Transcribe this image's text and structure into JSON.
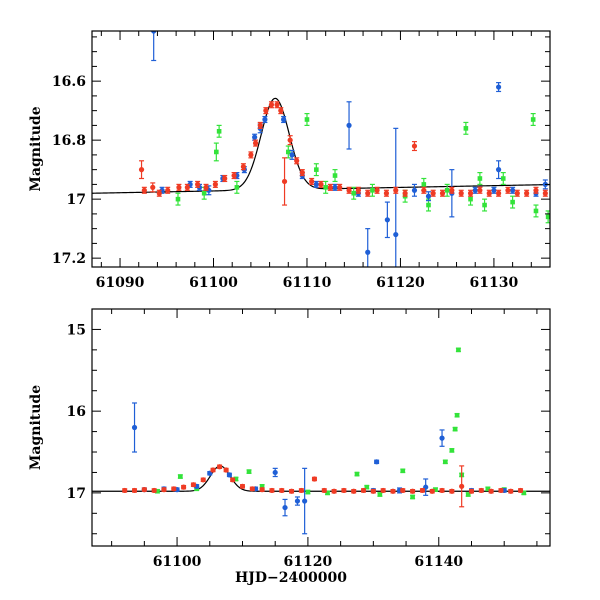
{
  "figure": {
    "x_title": "HJD−2400000",
    "colors": {
      "blue": "#1f5fd6",
      "red": "#ef3b24",
      "green": "#33e33a",
      "model": "#000000"
    }
  },
  "chart_data": [
    {
      "type": "scatter",
      "ylabel": "Magnitude",
      "xlim": [
        61087,
        61136
      ],
      "ylim": [
        17.23,
        16.43
      ],
      "xticks": [
        61090,
        61100,
        61110,
        61120,
        61130
      ],
      "xtick_labels": [
        "61090",
        "61100",
        "61110",
        "61120",
        "61130"
      ],
      "yticks": [
        16.6,
        16.8,
        17,
        17.2
      ],
      "ytick_labels": [
        "16.6",
        "16.8",
        "17",
        "17.2"
      ],
      "model_curve": {
        "name": "microlensing model",
        "t0": 61106.6,
        "baseline": 16.98,
        "amplitude": 0.31,
        "width": 1.5
      },
      "series": [
        {
          "name": "blue",
          "color_key": "blue",
          "points": [
            [
              61093.6,
              16.43,
              0.1
            ],
            [
              61094.5,
              16.97,
              0.01
            ],
            [
              61097.5,
              16.95,
              0.01
            ],
            [
              61098.5,
              16.96,
              0.01
            ],
            [
              61099.5,
              16.97,
              0.015
            ],
            [
              61101.0,
              16.93,
              0.01
            ],
            [
              61102.5,
              16.92,
              0.01
            ],
            [
              61103.3,
              16.9,
              0.01
            ],
            [
              61104.4,
              16.79,
              0.01
            ],
            [
              61105.0,
              16.76,
              0.015
            ],
            [
              61105.5,
              16.73,
              0.01
            ],
            [
              61107.5,
              16.73,
              0.01
            ],
            [
              61108.4,
              16.85,
              0.015
            ],
            [
              61109.5,
              16.92,
              0.01
            ],
            [
              61111.0,
              16.95,
              0.01
            ],
            [
              61113.0,
              16.96,
              0.01
            ],
            [
              61114.5,
              16.75,
              0.08
            ],
            [
              61115.5,
              16.98,
              0.01
            ],
            [
              61116.5,
              17.18,
              0.08
            ],
            [
              61118.6,
              17.07,
              0.06
            ],
            [
              61119.5,
              17.12,
              0.36
            ],
            [
              61121.5,
              16.97,
              0.02
            ],
            [
              61123.0,
              16.99,
              0.015
            ],
            [
              61125.5,
              16.98,
              0.08
            ],
            [
              61128.0,
              16.97,
              0.01
            ],
            [
              61130.0,
              16.97,
              0.01
            ],
            [
              61130.5,
              16.9,
              0.03
            ],
            [
              61130.5,
              16.62,
              0.015
            ],
            [
              61132.0,
              16.97,
              0.01
            ],
            [
              61134.5,
              16.98,
              0.01
            ],
            [
              61135.5,
              16.95,
              0.015
            ]
          ]
        },
        {
          "name": "red",
          "color_key": "red",
          "points": [
            [
              61092.3,
              16.9,
              0.03
            ],
            [
              61092.6,
              16.97,
              0.01
            ],
            [
              61093.5,
              16.96,
              0.015
            ],
            [
              61094.2,
              16.98,
              0.01
            ],
            [
              61095.1,
              16.97,
              0.01
            ],
            [
              61096.3,
              16.96,
              0.01
            ],
            [
              61097.2,
              16.96,
              0.01
            ],
            [
              61098.3,
              16.95,
              0.01
            ],
            [
              61099.2,
              16.96,
              0.01
            ],
            [
              61100.2,
              16.95,
              0.01
            ],
            [
              61101.2,
              16.93,
              0.01
            ],
            [
              61102.2,
              16.92,
              0.01
            ],
            [
              61103.2,
              16.89,
              0.01
            ],
            [
              61104.0,
              16.85,
              0.01
            ],
            [
              61104.5,
              16.81,
              0.01
            ],
            [
              61105.0,
              16.75,
              0.01
            ],
            [
              61105.6,
              16.7,
              0.01
            ],
            [
              61106.2,
              16.68,
              0.01
            ],
            [
              61106.8,
              16.68,
              0.01
            ],
            [
              61107.2,
              16.7,
              0.01
            ],
            [
              61107.6,
              16.94,
              0.08
            ],
            [
              61108.2,
              16.8,
              0.015
            ],
            [
              61108.9,
              16.87,
              0.01
            ],
            [
              61109.5,
              16.91,
              0.01
            ],
            [
              61110.5,
              16.94,
              0.01
            ],
            [
              61111.5,
              16.95,
              0.01
            ],
            [
              61112.5,
              16.96,
              0.01
            ],
            [
              61113.5,
              16.96,
              0.01
            ],
            [
              61114.5,
              16.97,
              0.01
            ],
            [
              61115.5,
              16.97,
              0.01
            ],
            [
              61116.5,
              16.98,
              0.01
            ],
            [
              61117.5,
              16.97,
              0.01
            ],
            [
              61118.5,
              16.98,
              0.01
            ],
            [
              61119.5,
              16.97,
              0.01
            ],
            [
              61120.5,
              16.98,
              0.01
            ],
            [
              61121.5,
              16.82,
              0.015
            ],
            [
              61122.5,
              16.97,
              0.01
            ],
            [
              61123.5,
              16.98,
              0.01
            ],
            [
              61124.5,
              16.98,
              0.01
            ],
            [
              61125.5,
              16.97,
              0.01
            ],
            [
              61126.5,
              16.98,
              0.01
            ],
            [
              61127.5,
              16.98,
              0.01
            ],
            [
              61128.5,
              16.97,
              0.01
            ],
            [
              61129.5,
              16.98,
              0.01
            ],
            [
              61130.5,
              16.98,
              0.01
            ],
            [
              61131.5,
              16.97,
              0.01
            ],
            [
              61132.5,
              16.98,
              0.01
            ],
            [
              61133.5,
              16.98,
              0.01
            ],
            [
              61134.5,
              16.97,
              0.01
            ],
            [
              61135.5,
              16.98,
              0.01
            ]
          ]
        },
        {
          "name": "green",
          "color_key": "green",
          "points": [
            [
              61096.2,
              17.0,
              0.02
            ],
            [
              61099.0,
              16.98,
              0.02
            ],
            [
              61100.3,
              16.84,
              0.03
            ],
            [
              61100.6,
              16.77,
              0.02
            ],
            [
              61102.5,
              16.96,
              0.02
            ],
            [
              61108.0,
              16.84,
              0.02
            ],
            [
              61110.0,
              16.73,
              0.02
            ],
            [
              61111.0,
              16.9,
              0.02
            ],
            [
              61112.0,
              16.96,
              0.02
            ],
            [
              61113.0,
              16.92,
              0.02
            ],
            [
              61115.0,
              16.98,
              0.02
            ],
            [
              61117.0,
              16.97,
              0.02
            ],
            [
              61120.5,
              16.99,
              0.02
            ],
            [
              61122.5,
              16.95,
              0.02
            ],
            [
              61123.0,
              17.02,
              0.02
            ],
            [
              61125.0,
              16.97,
              0.02
            ],
            [
              61127.0,
              16.76,
              0.02
            ],
            [
              61127.5,
              17.0,
              0.02
            ],
            [
              61128.5,
              16.93,
              0.02
            ],
            [
              61129.0,
              17.02,
              0.02
            ],
            [
              61131.0,
              16.93,
              0.02
            ],
            [
              61132.0,
              17.01,
              0.02
            ],
            [
              61134.2,
              16.73,
              0.02
            ],
            [
              61134.5,
              17.04,
              0.02
            ],
            [
              61135.8,
              17.06,
              0.02
            ]
          ]
        }
      ]
    },
    {
      "type": "scatter",
      "ylabel": "Magnitude",
      "xlabel": "HJD−2400000",
      "xlim": [
        61087,
        61157
      ],
      "ylim": [
        17.65,
        14.75
      ],
      "xticks": [
        61100,
        61120,
        61140
      ],
      "xtick_labels": [
        "61100",
        "61120",
        "61140"
      ],
      "yticks": [
        15,
        16,
        17
      ],
      "ytick_labels": [
        "15",
        "16",
        "17"
      ],
      "model_curve": {
        "name": "microlensing model",
        "t0": 61106.6,
        "baseline": 16.98,
        "amplitude": 0.31,
        "width": 1.5
      },
      "series": [
        {
          "name": "blue",
          "color_key": "blue",
          "points": [
            [
              61093.5,
              16.2,
              0.3
            ],
            [
              61095.0,
              16.96,
              0.02
            ],
            [
              61098.0,
              16.95,
              0.02
            ],
            [
              61100.0,
              16.96,
              0.02
            ],
            [
              61103.0,
              16.92,
              0.02
            ],
            [
              61105.0,
              16.76,
              0.02
            ],
            [
              61108.0,
              16.78,
              0.02
            ],
            [
              61112.0,
              16.95,
              0.02
            ],
            [
              61115.0,
              16.75,
              0.05
            ],
            [
              61116.5,
              17.18,
              0.1
            ],
            [
              61118.4,
              17.1,
              0.05
            ],
            [
              61119.5,
              17.1,
              0.4
            ],
            [
              61130.5,
              16.62,
              0.02
            ],
            [
              61130.0,
              16.97,
              0.02
            ],
            [
              61134.0,
              16.97,
              0.03
            ],
            [
              61138.0,
              16.93,
              0.1
            ],
            [
              61140.5,
              16.33,
              0.1
            ],
            [
              61145.0,
              16.97,
              0.02
            ],
            [
              61150.0,
              16.97,
              0.02
            ]
          ]
        },
        {
          "name": "red",
          "color_key": "red",
          "points": [
            [
              61092.0,
              16.97,
              0.02
            ],
            [
              61093.5,
              16.97,
              0.02
            ],
            [
              61095.0,
              16.96,
              0.02
            ],
            [
              61096.5,
              16.97,
              0.02
            ],
            [
              61098.0,
              16.96,
              0.02
            ],
            [
              61099.5,
              16.95,
              0.02
            ],
            [
              61101.0,
              16.93,
              0.02
            ],
            [
              61102.5,
              16.9,
              0.02
            ],
            [
              61104.0,
              16.84,
              0.02
            ],
            [
              61105.5,
              16.72,
              0.02
            ],
            [
              61106.5,
              16.68,
              0.02
            ],
            [
              61107.5,
              16.72,
              0.02
            ],
            [
              61108.5,
              16.84,
              0.02
            ],
            [
              61110.0,
              16.92,
              0.02
            ],
            [
              61111.5,
              16.95,
              0.02
            ],
            [
              61113.0,
              16.96,
              0.02
            ],
            [
              61114.5,
              16.97,
              0.02
            ],
            [
              61116.0,
              16.97,
              0.02
            ],
            [
              61117.5,
              16.98,
              0.02
            ],
            [
              61119.0,
              16.97,
              0.02
            ],
            [
              61121.0,
              16.83,
              0.02
            ],
            [
              61122.5,
              16.97,
              0.02
            ],
            [
              61124.0,
              16.98,
              0.02
            ],
            [
              61125.5,
              16.97,
              0.02
            ],
            [
              61127.0,
              16.98,
              0.02
            ],
            [
              61128.5,
              16.97,
              0.02
            ],
            [
              61130.0,
              16.98,
              0.02
            ],
            [
              61131.5,
              16.97,
              0.02
            ],
            [
              61133.0,
              16.98,
              0.02
            ],
            [
              61134.5,
              16.97,
              0.02
            ],
            [
              61136.0,
              16.98,
              0.02
            ],
            [
              61137.5,
              16.97,
              0.02
            ],
            [
              61139.0,
              16.98,
              0.02
            ],
            [
              61140.5,
              16.97,
              0.02
            ],
            [
              61142.0,
              16.98,
              0.02
            ],
            [
              61143.5,
              16.92,
              0.25
            ],
            [
              61145.0,
              16.98,
              0.02
            ],
            [
              61146.5,
              16.97,
              0.02
            ],
            [
              61148.0,
              16.98,
              0.02
            ],
            [
              61149.5,
              16.97,
              0.02
            ],
            [
              61151.0,
              16.98,
              0.02
            ],
            [
              61152.5,
              16.97,
              0.02
            ]
          ]
        },
        {
          "name": "green",
          "color_key": "green",
          "points": [
            [
              61097.0,
              16.98,
              0.02
            ],
            [
              61100.5,
              16.8,
              0.02
            ],
            [
              61103.0,
              16.95,
              0.02
            ],
            [
              61109.0,
              16.83,
              0.02
            ],
            [
              61111.0,
              16.74,
              0.02
            ],
            [
              61113.0,
              16.92,
              0.02
            ],
            [
              61120.0,
              16.99,
              0.02
            ],
            [
              61123.0,
              17.0,
              0.02
            ],
            [
              61127.5,
              16.77,
              0.02
            ],
            [
              61129.0,
              16.93,
              0.02
            ],
            [
              61131.0,
              17.02,
              0.02
            ],
            [
              61134.5,
              16.73,
              0.02
            ],
            [
              61136.0,
              17.05,
              0.02
            ],
            [
              61139.5,
              16.96,
              0.02
            ],
            [
              61141.0,
              16.62,
              0.02
            ],
            [
              61142.0,
              16.48,
              0.02
            ],
            [
              61142.5,
              16.22,
              0.02
            ],
            [
              61142.8,
              16.05,
              0.02
            ],
            [
              61143.0,
              15.25,
              0.02
            ],
            [
              61143.5,
              16.78,
              0.02
            ],
            [
              61144.5,
              17.02,
              0.02
            ],
            [
              61147.5,
              16.95,
              0.02
            ],
            [
              61150.0,
              16.96,
              0.02
            ],
            [
              61153.0,
              17.0,
              0.02
            ]
          ]
        }
      ]
    }
  ]
}
